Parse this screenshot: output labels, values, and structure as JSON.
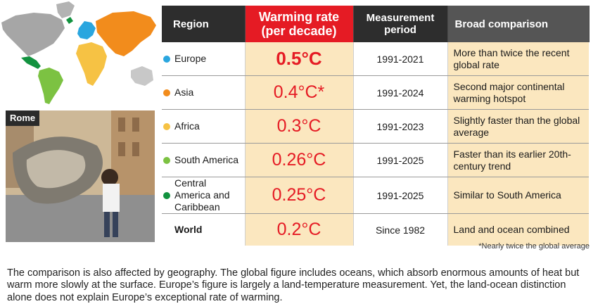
{
  "photo": {
    "label": "Rome"
  },
  "table": {
    "headers": {
      "region": "Region",
      "rate": "Warming rate (per decade)",
      "period": "Measurement period",
      "comparison": "Broad comparison"
    },
    "rows": [
      {
        "region": "Europe",
        "dot_color": "#2aa6df",
        "rate": "0.5°C",
        "period": "1991-2021",
        "comparison": "More than twice the recent global rate"
      },
      {
        "region": "Asia",
        "dot_color": "#f28c1c",
        "rate": "0.4°C*",
        "period": "1991-2024",
        "comparison": "Second major continental warming hotspot"
      },
      {
        "region": "Africa",
        "dot_color": "#f6c244",
        "rate": "0.3°C",
        "period": "1991-2023",
        "comparison": "Slightly faster than the global average"
      },
      {
        "region": "South America",
        "dot_color": "#7cc242",
        "rate": "0.26°C",
        "period": "1991-2025",
        "comparison": "Faster than its earlier 20th-century trend"
      },
      {
        "region": "Central America and Caribbean",
        "dot_color": "#12923f",
        "rate": "0.25°C",
        "period": "1991-2025",
        "comparison": "Similar to South America"
      },
      {
        "region": "World",
        "dot_color": "",
        "rate": "0.2°C",
        "period": "Since 1982",
        "comparison": "Land and ocean combined"
      }
    ]
  },
  "footnote": "*Nearly twice the global average",
  "body_text": "The comparison is also affected by geography. The global figure includes oceans, which absorb enormous amounts of heat but warm more slowly at the surface. Europe’s figure is largely a land-temperature measurement. Yet, the land-ocean distinction alone does not explain Europe’s exceptional rate of warming."
}
